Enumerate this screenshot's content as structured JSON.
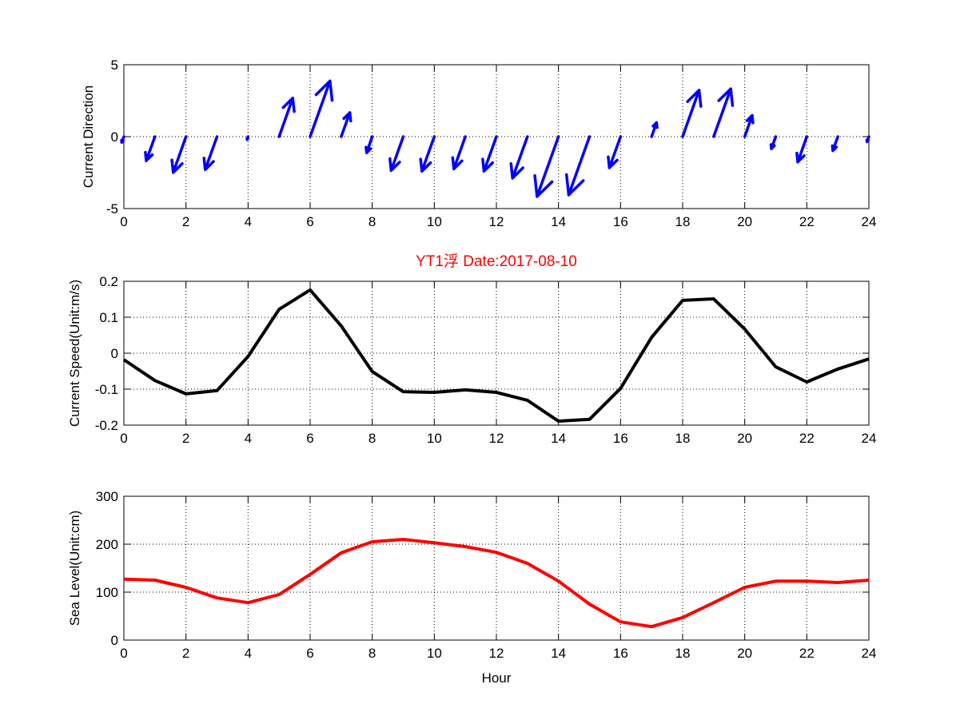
{
  "title": "YT1浮   Date:2017-08-10",
  "title_color": "#ff0000",
  "chart_data": [
    {
      "type": "quiver",
      "ylabel": "Current Direction",
      "xlim": [
        0,
        24
      ],
      "ylim": [
        -5,
        5
      ],
      "xticks": [
        "0",
        "2",
        "4",
        "6",
        "8",
        "10",
        "12",
        "14",
        "16",
        "18",
        "20",
        "22",
        "24"
      ],
      "yticks": [
        "-5",
        "0",
        "5"
      ],
      "grid": true,
      "color": "#0000ff",
      "x": [
        0,
        1,
        2,
        3,
        4,
        5,
        6,
        7,
        8,
        9,
        10,
        11,
        12,
        13,
        14,
        15,
        16,
        17,
        18,
        19,
        20,
        21,
        22,
        23,
        24
      ],
      "u": [
        -0.07,
        -0.28,
        -0.41,
        -0.38,
        -0.03,
        0.44,
        0.64,
        0.28,
        -0.18,
        -0.39,
        -0.4,
        -0.37,
        -0.4,
        -0.48,
        -0.69,
        -0.67,
        -0.36,
        0.16,
        0.53,
        0.55,
        0.24,
        -0.14,
        -0.29,
        -0.16,
        -0.06
      ],
      "v": [
        -0.4,
        -1.67,
        -2.49,
        -2.29,
        -0.2,
        2.68,
        3.87,
        1.67,
        -1.12,
        -2.35,
        -2.4,
        -2.24,
        -2.4,
        -2.88,
        -4.16,
        -4.05,
        -2.16,
        0.97,
        3.23,
        3.32,
        1.47,
        -0.84,
        -1.76,
        -0.97,
        -0.35
      ]
    },
    {
      "type": "line",
      "ylabel": "Current Speed(Unit:m/s)",
      "xlim": [
        0,
        24
      ],
      "ylim": [
        -0.2,
        0.2
      ],
      "xticks": [
        "0",
        "2",
        "4",
        "6",
        "8",
        "10",
        "12",
        "14",
        "16",
        "18",
        "20",
        "22",
        "24"
      ],
      "yticks": [
        "-0.2",
        "-0.1",
        "0",
        "0.1",
        "0.2"
      ],
      "grid": true,
      "color": "#000000",
      "x": [
        0,
        1,
        2,
        3,
        4,
        5,
        6,
        7,
        8,
        9,
        10,
        11,
        12,
        13,
        14,
        15,
        16,
        17,
        18,
        19,
        20,
        21,
        22,
        23,
        24
      ],
      "y": [
        -0.018,
        -0.076,
        -0.113,
        -0.104,
        -0.009,
        0.122,
        0.176,
        0.076,
        -0.051,
        -0.107,
        -0.109,
        -0.102,
        -0.109,
        -0.131,
        -0.189,
        -0.184,
        -0.098,
        0.044,
        0.147,
        0.151,
        0.067,
        -0.038,
        -0.08,
        -0.044,
        -0.016
      ]
    },
    {
      "type": "line",
      "ylabel": "Sea Level(Unit:cm)",
      "xlabel": "Hour",
      "xlim": [
        0,
        24
      ],
      "ylim": [
        0,
        300
      ],
      "xticks": [
        "0",
        "2",
        "4",
        "6",
        "8",
        "10",
        "12",
        "14",
        "16",
        "18",
        "20",
        "22",
        "24"
      ],
      "yticks": [
        "0",
        "100",
        "200",
        "300"
      ],
      "grid": true,
      "color": "#ff0000",
      "x": [
        0,
        1,
        2,
        3,
        4,
        5,
        6,
        7,
        8,
        9,
        10,
        11,
        12,
        13,
        14,
        15,
        16,
        17,
        18,
        19,
        20,
        21,
        22,
        23,
        24
      ],
      "y": [
        127,
        125,
        110,
        88,
        78,
        95,
        137,
        182,
        205,
        210,
        203,
        195,
        183,
        160,
        123,
        75,
        38,
        28,
        47,
        78,
        110,
        123,
        123,
        120,
        125
      ]
    }
  ]
}
